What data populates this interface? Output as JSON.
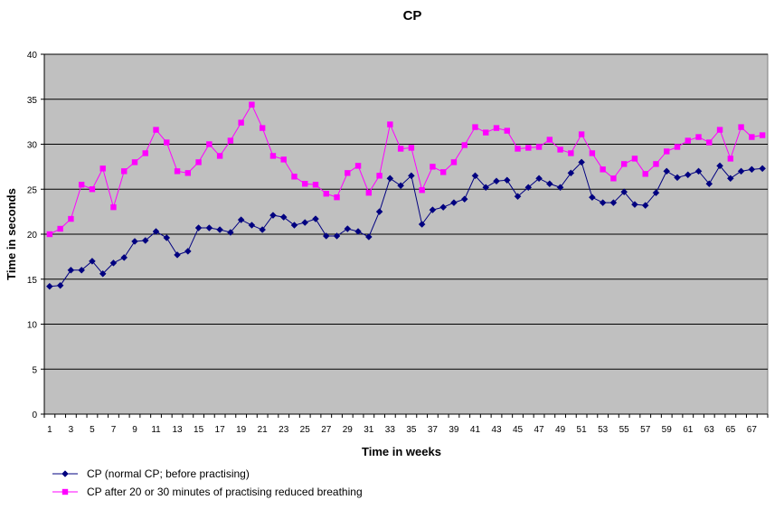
{
  "chart_data": {
    "type": "line",
    "title": "CP",
    "xlabel": "Time in weeks",
    "ylabel": "Time in seconds",
    "ylim": [
      0,
      40
    ],
    "yticks": [
      "0",
      "5",
      "10",
      "15",
      "20",
      "25",
      "30",
      "35",
      "40"
    ],
    "xtick_labels": [
      "1",
      "3",
      "5",
      "7",
      "9",
      "11",
      "13",
      "15",
      "17",
      "19",
      "21",
      "23",
      "25",
      "27",
      "29",
      "31",
      "33",
      "35",
      "37",
      "39",
      "41",
      "43",
      "45",
      "47",
      "49",
      "51",
      "53",
      "55",
      "57",
      "59",
      "61",
      "63",
      "65",
      "67"
    ],
    "x": [
      1,
      2,
      3,
      4,
      5,
      6,
      7,
      8,
      9,
      10,
      11,
      12,
      13,
      14,
      15,
      16,
      17,
      18,
      19,
      20,
      21,
      22,
      23,
      24,
      25,
      26,
      27,
      28,
      29,
      30,
      31,
      32,
      33,
      34,
      35,
      36,
      37,
      38,
      39,
      40,
      41,
      42,
      43,
      44,
      45,
      46,
      47,
      48,
      49,
      50,
      51,
      52,
      53,
      54,
      55,
      56,
      57,
      58,
      59,
      60,
      61,
      62,
      63,
      64,
      65,
      66,
      67,
      68
    ],
    "grid": true,
    "background_color": "#c0c0c0",
    "legend_position": "bottom-left",
    "series": [
      {
        "name": "CP (normal CP; before practising)",
        "color": "#000080",
        "marker": "diamond",
        "values": [
          14.2,
          14.3,
          16.0,
          16.0,
          17.0,
          15.6,
          16.8,
          17.4,
          19.2,
          19.3,
          20.3,
          19.6,
          17.7,
          18.1,
          20.7,
          20.7,
          20.5,
          20.2,
          21.6,
          21.0,
          20.5,
          22.1,
          21.9,
          21.0,
          21.3,
          21.7,
          19.8,
          19.8,
          20.6,
          20.3,
          19.7,
          22.5,
          26.2,
          25.4,
          26.5,
          21.1,
          22.7,
          23.0,
          23.5,
          23.9,
          26.5,
          25.2,
          25.9,
          26.0,
          24.2,
          25.2,
          26.2,
          25.6,
          25.2,
          26.8,
          28.0,
          24.1,
          23.5,
          23.5,
          24.7,
          23.3,
          23.2,
          24.6,
          27.0,
          26.3,
          26.6,
          27.0,
          25.6,
          27.6,
          26.2,
          27.0,
          27.2,
          27.3
        ]
      },
      {
        "name": "CP after 20 or 30 minutes of practising reduced breathing",
        "color": "#ff00ff",
        "marker": "square",
        "values": [
          20.0,
          20.6,
          21.7,
          25.5,
          25.0,
          27.3,
          23.0,
          27.0,
          28.0,
          29.0,
          31.6,
          30.2,
          27.0,
          26.8,
          28.0,
          30.0,
          28.7,
          30.4,
          32.4,
          34.4,
          31.8,
          28.7,
          28.3,
          26.4,
          25.6,
          25.5,
          24.5,
          24.1,
          26.8,
          27.6,
          24.6,
          26.5,
          32.2,
          29.5,
          29.6,
          24.9,
          27.5,
          26.9,
          28.0,
          29.9,
          31.9,
          31.3,
          31.8,
          31.5,
          29.5,
          29.6,
          29.7,
          30.5,
          29.4,
          29.0,
          31.1,
          29.0,
          27.2,
          26.2,
          27.8,
          28.4,
          26.7,
          27.8,
          29.2,
          29.7,
          30.4,
          30.8,
          30.2,
          31.6,
          28.4,
          31.9,
          30.8,
          31.0
        ]
      }
    ]
  }
}
